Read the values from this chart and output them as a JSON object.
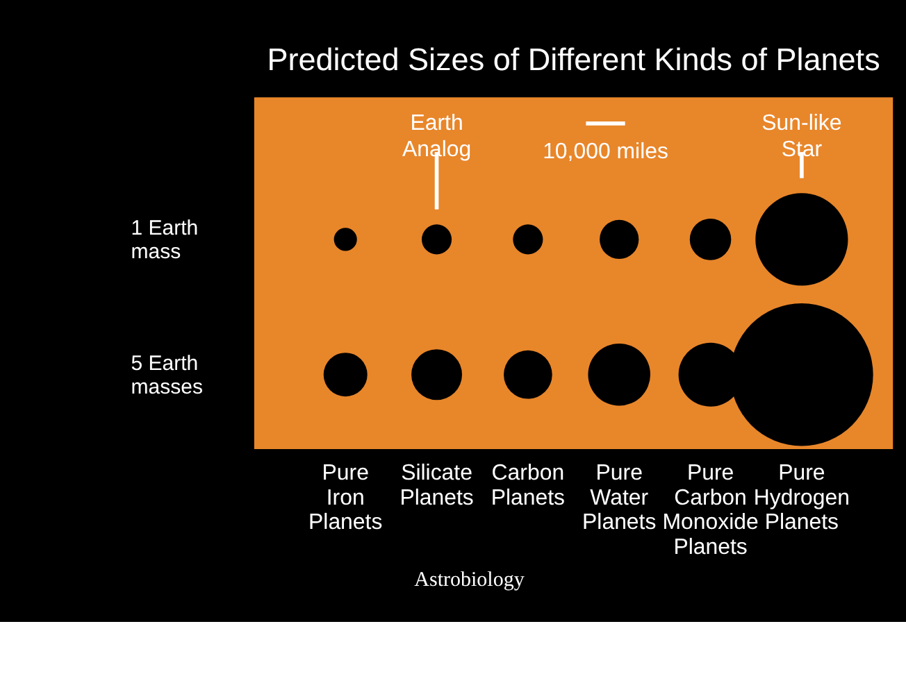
{
  "chart_data": {
    "type": "bubble",
    "title": "Predicted Sizes of Different Kinds of Planets",
    "categories": [
      "Pure Iron Planets",
      "Silicate Planets",
      "Carbon Planets",
      "Pure Water Planets",
      "Pure Carbon Monoxide Planets",
      "Pure Hydrogen Planets"
    ],
    "series": [
      {
        "color": "#000000",
        "values": [
          1,
          1,
          1,
          1,
          1,
          1
        ],
        "sizes": [
          0.026,
          0.044,
          0.044,
          0.075,
          0.084,
          0.42
        ]
      },
      {
        "color": "#000000",
        "values": [
          5,
          5,
          5,
          5,
          5,
          5
        ],
        "sizes": [
          0.094,
          0.126,
          0.115,
          0.19,
          0.2,
          1
        ]
      }
    ],
    "ylim": [
      7.2,
      -3.2
    ],
    "yticks": [
      {
        "value": 1,
        "label": "1 Earth mass"
      },
      {
        "value": 5,
        "label": "5 Earth masses"
      }
    ],
    "annotations": [
      "Earth Analog",
      "Sun-like Star",
      "10,000 miles",
      "Astrobiology"
    ],
    "grid": false,
    "legend": false
  }
}
